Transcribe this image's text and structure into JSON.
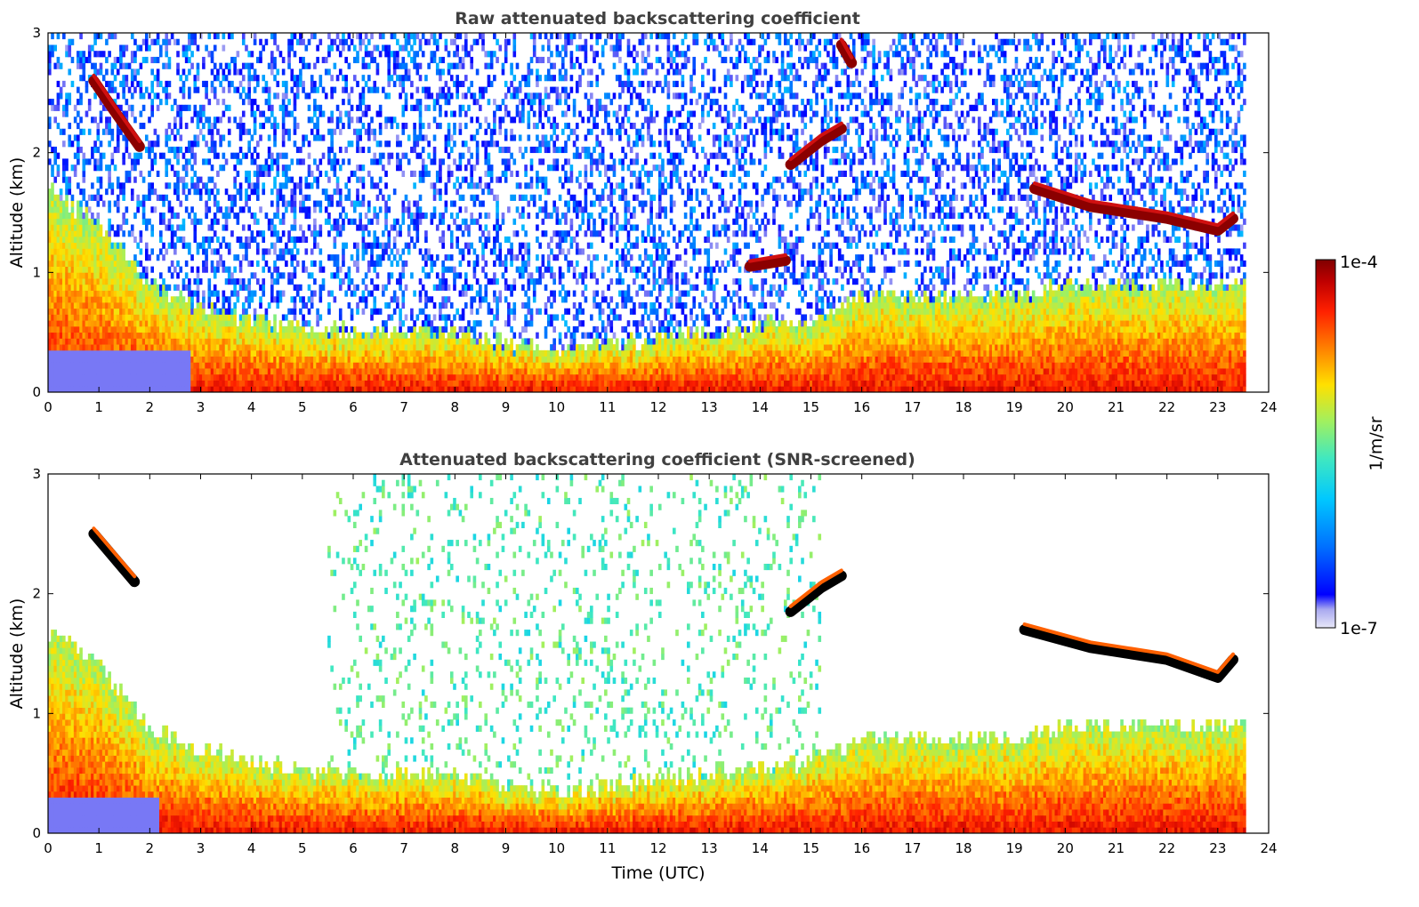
{
  "chart_data": [
    {
      "type": "heatmap",
      "title": "Raw attenuated backscattering coefficient",
      "xlabel": "",
      "ylabel": "Altitude (km)",
      "xlim": [
        0,
        24
      ],
      "ylim": [
        0,
        3
      ],
      "xticks": [
        "0",
        "1",
        "2",
        "3",
        "4",
        "5",
        "6",
        "7",
        "8",
        "9",
        "10",
        "11",
        "12",
        "13",
        "14",
        "15",
        "16",
        "17",
        "18",
        "19",
        "20",
        "21",
        "22",
        "23",
        "24"
      ],
      "yticks": [
        "0",
        "1",
        "2",
        "3"
      ],
      "data_end_hour": 23.55,
      "features": [
        {
          "name": "boundary layer aerosol",
          "start_hour": 0,
          "end_hour": 23.55,
          "top_km": [
            1.7,
            1.4,
            0.9,
            0.7,
            0.6,
            0.55,
            0.5,
            0.5,
            0.5,
            0.4,
            0.35,
            0.4,
            0.45,
            0.5,
            0.55,
            0.6,
            0.8,
            0.8,
            0.8,
            0.8,
            0.9,
            0.9,
            0.9,
            0.9
          ]
        },
        {
          "name": "cloud layer 1",
          "points": [
            [
              0.9,
              2.6
            ],
            [
              1.3,
              2.35
            ],
            [
              1.8,
              2.05
            ]
          ]
        },
        {
          "name": "cloud layer 2",
          "points": [
            [
              14.6,
              1.9
            ],
            [
              15.2,
              2.1
            ],
            [
              15.6,
              2.2
            ]
          ]
        },
        {
          "name": "cloud layer 3",
          "points": [
            [
              13.8,
              1.05
            ],
            [
              14.5,
              1.1
            ]
          ]
        },
        {
          "name": "cloud layer 4",
          "points": [
            [
              19.4,
              1.7
            ],
            [
              20.5,
              1.55
            ],
            [
              22.0,
              1.45
            ],
            [
              23.0,
              1.35
            ],
            [
              23.3,
              1.45
            ]
          ]
        },
        {
          "name": "cloud layer 5",
          "points": [
            [
              15.6,
              2.9
            ],
            [
              15.8,
              2.75
            ]
          ]
        }
      ]
    },
    {
      "type": "heatmap",
      "title": "Attenuated backscattering coefficient (SNR-screened)",
      "xlabel": "Time (UTC)",
      "ylabel": "Altitude (km)",
      "xlim": [
        0,
        24
      ],
      "ylim": [
        0,
        3
      ],
      "xticks": [
        "0",
        "1",
        "2",
        "3",
        "4",
        "5",
        "6",
        "7",
        "8",
        "9",
        "10",
        "11",
        "12",
        "13",
        "14",
        "15",
        "16",
        "17",
        "18",
        "19",
        "20",
        "21",
        "22",
        "23",
        "24"
      ],
      "yticks": [
        "0",
        "1",
        "2",
        "3"
      ],
      "data_end_hour": 23.55,
      "features": [
        {
          "name": "boundary layer aerosol",
          "start_hour": 0,
          "end_hour": 23.55,
          "top_km": [
            1.7,
            1.4,
            0.9,
            0.7,
            0.6,
            0.55,
            0.5,
            0.5,
            0.5,
            0.4,
            0.35,
            0.4,
            0.45,
            0.5,
            0.55,
            0.6,
            0.8,
            0.8,
            0.8,
            0.8,
            0.9,
            0.9,
            0.9,
            0.9
          ]
        },
        {
          "name": "cloud layer 1",
          "points": [
            [
              0.9,
              2.5
            ],
            [
              1.3,
              2.3
            ],
            [
              1.7,
              2.1
            ]
          ]
        },
        {
          "name": "cloud layer 2",
          "points": [
            [
              14.6,
              1.85
            ],
            [
              15.2,
              2.05
            ],
            [
              15.6,
              2.15
            ]
          ]
        },
        {
          "name": "cloud layer 4",
          "points": [
            [
              19.2,
              1.7
            ],
            [
              20.5,
              1.55
            ],
            [
              22.0,
              1.45
            ],
            [
              23.0,
              1.3
            ],
            [
              23.3,
              1.45
            ]
          ]
        }
      ]
    }
  ],
  "colorbar": {
    "max_label": "1e-4",
    "min_label": "1e-7",
    "unit_label": "1/m/sr",
    "colors": [
      "#e8e8f8",
      "#b0b0f0",
      "#0000ff",
      "#0070ff",
      "#00c8ff",
      "#40e8c0",
      "#a0f060",
      "#ffe000",
      "#ff8000",
      "#ff2000",
      "#c00000",
      "#800000"
    ]
  }
}
